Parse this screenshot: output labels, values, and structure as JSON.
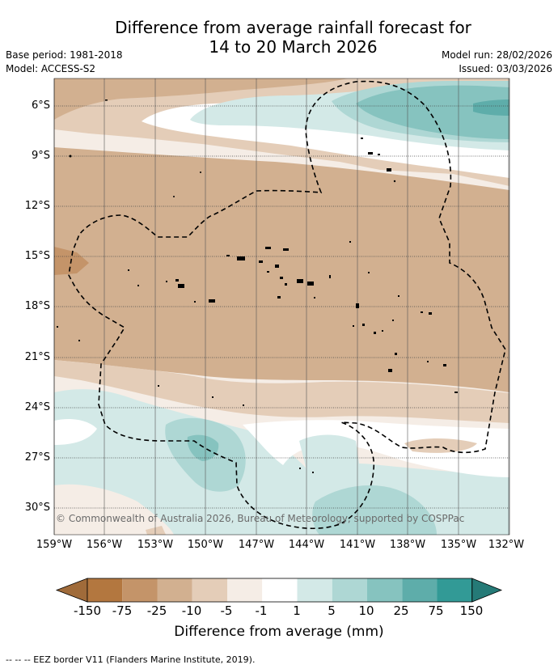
{
  "header": {
    "title_line1": "Difference from average rainfall forecast for",
    "title_line2": "14 to 20 March 2026",
    "base_period": "Base period: 1981-2018",
    "model": "Model: ACCESS-S2",
    "model_run": "Model run: 28/02/2026",
    "issued": "Issued: 03/03/2026"
  },
  "map": {
    "lat_labels": [
      "6°S",
      "9°S",
      "12°S",
      "15°S",
      "18°S",
      "21°S",
      "24°S",
      "27°S",
      "30°S"
    ],
    "lon_labels": [
      "159°W",
      "156°W",
      "153°W",
      "150°W",
      "147°W",
      "144°W",
      "141°W",
      "138°W",
      "135°W",
      "132°W"
    ],
    "copyright": "© Commonwealth of Australia 2026, Bureau of Meteorology, supported by COSPPac"
  },
  "colorbar": {
    "tick_labels": [
      "-150",
      "-75",
      "-25",
      "-10",
      "-5",
      "-1",
      "1",
      "5",
      "10",
      "25",
      "75",
      "150"
    ],
    "colors": [
      "#a06b3a",
      "#b3773f",
      "#c49469",
      "#d2b090",
      "#e4cdb8",
      "#f5ede6",
      "#ffffff",
      "#d3e9e7",
      "#aed7d4",
      "#86c3bf",
      "#5eadaa",
      "#329a96",
      "#257a77"
    ],
    "title": "Difference from average (mm)"
  },
  "legend_note": "--  --  -- EEZ border V11 (Flanders Marine Institute, 2019)."
}
